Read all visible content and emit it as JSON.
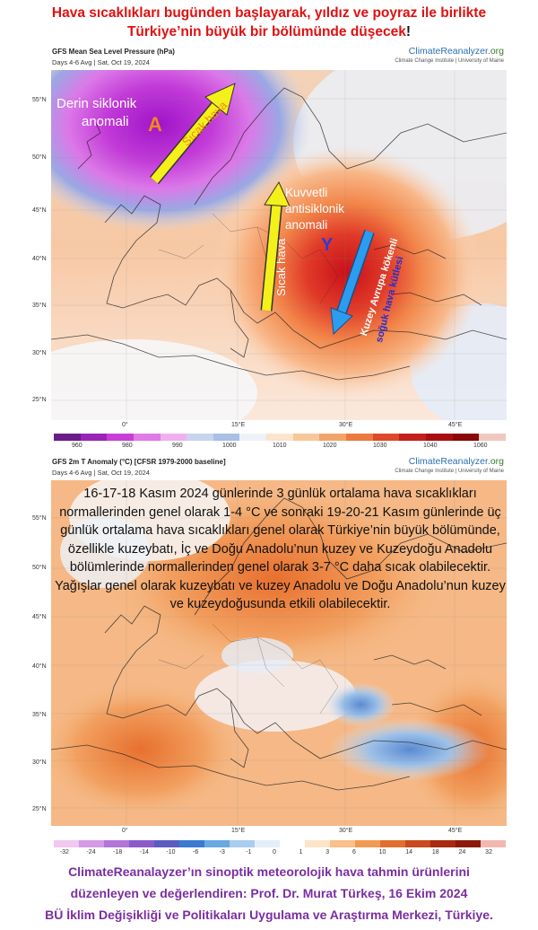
{
  "headline": {
    "line1": "Hava sıcaklıkları bugünden başlayarak, yıldız ve poyraz ile birlikte",
    "line2": "Türkiye’nin büyük bir bölümünde düşecek",
    "bang": "!"
  },
  "map1": {
    "title": "GFS Mean Sea Level Pressure (hPa)",
    "subtitle": "Days 4-6 Avg | Sat, Oct 19, 2024",
    "brand": "ClimateReanalyzer",
    "brand_suffix": ".org",
    "brand_sub": "Climate Change Institute | University of Maine",
    "lat_labels": [
      "55°N",
      "50°N",
      "45°N",
      "40°N",
      "35°N",
      "30°N",
      "25°N"
    ],
    "lon_labels": [
      "0°",
      "15°E",
      "30°E",
      "45°E"
    ],
    "colorbar_labels": [
      "960",
      "980",
      "990",
      "1000",
      "1010",
      "1020",
      "1030",
      "1040",
      "1060"
    ],
    "colorbar_colors": [
      "#6a1c8a",
      "#9a24b8",
      "#c83ed8",
      "#e07ae6",
      "#f0b0f0",
      "#c8d4ee",
      "#a8bfe8",
      "#eef2f8",
      "#fbe4cc",
      "#f7c79a",
      "#f2a468",
      "#ea7a40",
      "#dc4a28",
      "#c4201a",
      "#a81010",
      "#8a0a0a",
      "#f1c8c0"
    ],
    "annotations": {
      "low_label_1": "Derin siklonik",
      "low_label_2": "anomali",
      "low_letter": "A",
      "warm_air_1": "Sıcak hava",
      "high_label_1": "Kuvvetli",
      "high_label_2": "antisiklonik",
      "high_label_3": "anomali",
      "high_letter": "Y",
      "warm_air_2": "Sıcak hava",
      "cold_air_1": "Kuzey Avrupa kökenli",
      "cold_air_2": "soğuk hava kütlesi"
    },
    "arrow_colors": {
      "warm": "#f4f01a",
      "cold": "#2a9df0"
    }
  },
  "map2": {
    "title": "GFS 2m T Anomaly (°C) [CFSR 1979-2000 baseline]",
    "subtitle": "Days 4-6 Avg | Sat, Oct 19, 2024",
    "brand": "ClimateReanalyzer",
    "brand_suffix": ".org",
    "brand_sub": "Climate Change Institute | University of Maine",
    "lat_labels": [
      "55°N",
      "50°N",
      "45°N",
      "40°N",
      "35°N",
      "30°N",
      "25°N"
    ],
    "lon_labels": [
      "0°",
      "15°E",
      "30°E",
      "45°E"
    ],
    "colorbar_labels": [
      "-32",
      "-24",
      "-18",
      "-14",
      "-10",
      "-6",
      "-3",
      "-1",
      "0",
      "1",
      "3",
      "6",
      "10",
      "14",
      "18",
      "24",
      "32"
    ],
    "colorbar_colors": [
      "#f0c8f0",
      "#d49ae6",
      "#b276d8",
      "#8a5cc8",
      "#5c5cc0",
      "#3a7ad0",
      "#6aa8e0",
      "#a8cdee",
      "#e4eef8",
      "#ffffff",
      "#fde4c8",
      "#f8c08a",
      "#f09a52",
      "#e07030",
      "#c84a1e",
      "#a82a10",
      "#8a1a0a",
      "#f2b8b0"
    ],
    "paragraph": "16-17-18 Kasım 2024 günlerinde 3 günlük ortalama hava sıcaklıkları normallerinden genel olarak 1-4 °C ve sonraki 19-20-21 Kasım günlerinde üç günlük ortalama hava sıcaklıkları genel olarak Türkiye’nin büyük bölümünde, özellikle kuzeybatı, İç ve Doğu Anadolu’nun kuzey ve Kuzeydoğu Anadolu bölümlerinde normallerinden genel olarak 3-7 °C daha sıcak olabilecektir. Yağışlar genel olarak kuzeybatı ve kuzey Anadolu ve Doğu Anadolu’nun kuzey ve kuzeydoğusunda etkili olabilecektir."
  },
  "footer": {
    "line1": "ClimateReanalayzer’ın sinoptik meteorolojik hava tahmin ürünlerini",
    "line2": "düzenleyen ve değerlendiren: Prof. Dr. Murat Türkeş, 16 Ekim 2024",
    "line3": "BÜ İklim Değişikliği ve Politikaları Uygulama ve Araştırma Merkezi, Türkiye."
  }
}
